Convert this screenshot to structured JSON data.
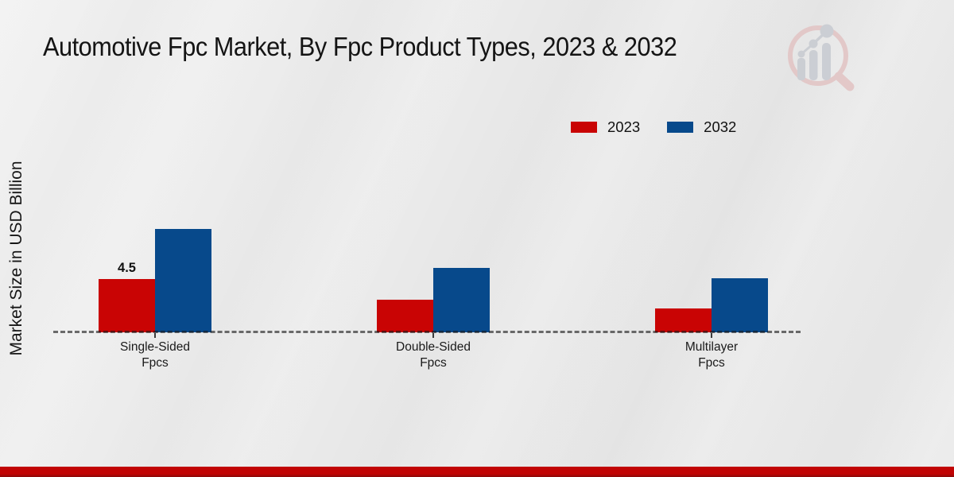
{
  "header": {
    "title": "Automotive Fpc Market, By Fpc Product Types, 2023 & 2032"
  },
  "chart_data": {
    "type": "bar",
    "title": "Automotive Fpc Market, By Fpc Product Types, 2023 & 2032",
    "xlabel": "",
    "ylabel": "Market Size in USD Billion",
    "categories": [
      "Single-Sided\nFpcs",
      "Double-Sided\nFpcs",
      "Multilayer\nFpcs"
    ],
    "series": [
      {
        "name": "2023",
        "color": "#c90404",
        "values": [
          4.5,
          2.75,
          2.0
        ],
        "data_labels": [
          "4.5",
          "",
          ""
        ]
      },
      {
        "name": "2032",
        "color": "#07498b",
        "values": [
          8.7,
          5.45,
          4.55
        ],
        "data_labels": [
          "",
          "",
          ""
        ]
      }
    ],
    "ylim": [
      0,
      10
    ],
    "grid": false,
    "legend_position": "top-right",
    "axis_style": "dashed zero baseline, no y-axis ticks"
  },
  "branding": {
    "logo_icon": "magnifier-bar-chart-icon",
    "accent_red": "#c10404"
  },
  "colors": {
    "background": "#e9e9e9",
    "bar_2023": "#c90404",
    "bar_2032": "#07498b",
    "dashed_line": "#2a2a2a",
    "bottom_bar": "#c10404"
  }
}
